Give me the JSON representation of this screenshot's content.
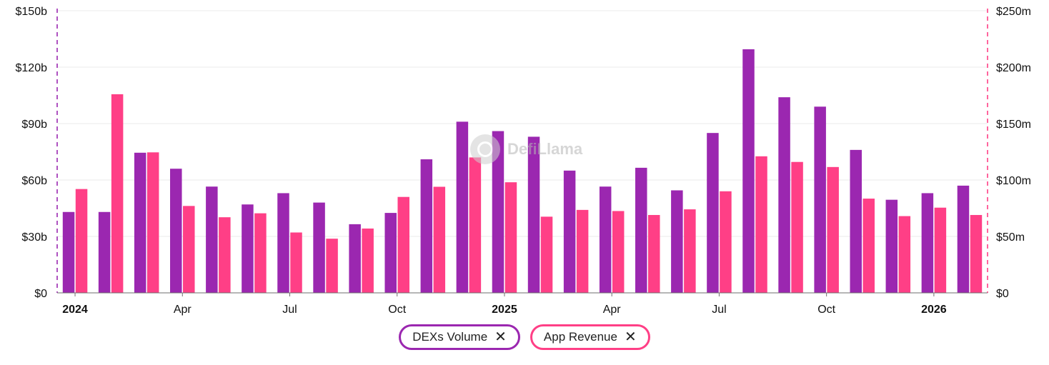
{
  "colors": {
    "dexs": "#9b27b0",
    "revenue": "#ff3f86",
    "grid": "#ebebeb",
    "left_axis_line": "#9b27b0",
    "right_axis_line": "#ff3f86"
  },
  "watermark": {
    "text": "DefiLlama",
    "icon": "defillama-logo-icon"
  },
  "legend": [
    {
      "label": "DEXs Volume",
      "color": "#9b27b0",
      "icon": "close-icon"
    },
    {
      "label": "App Revenue",
      "color": "#ff3f86",
      "icon": "close-icon"
    }
  ],
  "chart_data": {
    "type": "bar",
    "title": "",
    "grid": true,
    "legend_position": "bottom-center",
    "x_ticks": [
      {
        "label": "2024",
        "index": 0,
        "bold": true
      },
      {
        "label": "Apr",
        "index": 3,
        "bold": false
      },
      {
        "label": "Jul",
        "index": 6,
        "bold": false
      },
      {
        "label": "Oct",
        "index": 9,
        "bold": false
      },
      {
        "label": "2025",
        "index": 12,
        "bold": true
      },
      {
        "label": "Apr",
        "index": 15,
        "bold": false
      },
      {
        "label": "Jul",
        "index": 18,
        "bold": false
      },
      {
        "label": "Oct",
        "index": 21,
        "bold": false
      },
      {
        "label": "2026",
        "index": 24,
        "bold": true
      }
    ],
    "categories": [
      "2024-01",
      "2024-02",
      "2024-03",
      "2024-04",
      "2024-05",
      "2024-06",
      "2024-07",
      "2024-08",
      "2024-09",
      "2024-10",
      "2024-11",
      "2024-12",
      "2025-01",
      "2025-02",
      "2025-03",
      "2025-04",
      "2025-05",
      "2025-06",
      "2025-07",
      "2025-08",
      "2025-09",
      "2025-10",
      "2025-11",
      "2025-12",
      "2026-01",
      "2026-02"
    ],
    "y_left": {
      "ylim": [
        0,
        150
      ],
      "ticks": [
        "$0",
        "$30b",
        "$60b",
        "$90b",
        "$120b",
        "$150b"
      ],
      "unit": "$b"
    },
    "y_right": {
      "ylim": [
        0,
        250
      ],
      "ticks": [
        "$0",
        "$50m",
        "$100m",
        "$150m",
        "$200m",
        "$250m"
      ],
      "unit": "$m"
    },
    "series": [
      {
        "name": "DEXs Volume",
        "axis": "left",
        "values": [
          43,
          43,
          74.5,
          66,
          56.5,
          47,
          53,
          48,
          36.5,
          42.5,
          71,
          91,
          86,
          83,
          65,
          56.5,
          66.5,
          54.5,
          85,
          129.5,
          104,
          99,
          76,
          49.5,
          53,
          57
        ]
      },
      {
        "name": "App Revenue",
        "axis": "right",
        "values": [
          92,
          176,
          124.5,
          77,
          67,
          70.5,
          53.5,
          48,
          57,
          85,
          94,
          120,
          98,
          67.5,
          73.5,
          72.5,
          69,
          74,
          90,
          121,
          116,
          111.5,
          83.5,
          68,
          75.5,
          69
        ]
      }
    ]
  }
}
